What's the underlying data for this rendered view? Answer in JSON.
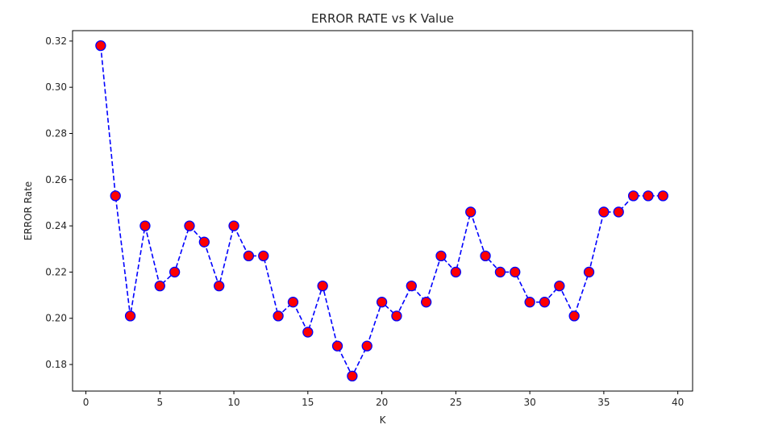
{
  "chart_data": {
    "type": "line",
    "title": "ERROR RATE vs K Value",
    "xlabel": "K",
    "ylabel": "ERROR Rate",
    "xlim": [
      -0.9,
      41.0
    ],
    "ylim": [
      0.1685,
      0.3245
    ],
    "xticks": [
      0,
      5,
      10,
      15,
      20,
      25,
      30,
      35,
      40
    ],
    "xtick_labels": [
      "0",
      "5",
      "10",
      "15",
      "20",
      "25",
      "30",
      "35",
      "40"
    ],
    "yticks": [
      0.18,
      0.2,
      0.22,
      0.24,
      0.26,
      0.28,
      0.3,
      0.32
    ],
    "ytick_labels": [
      "0.18",
      "0.20",
      "0.22",
      "0.24",
      "0.26",
      "0.28",
      "0.30",
      "0.32"
    ],
    "grid": false,
    "line_style": "dashed",
    "line_color": "#0000ff",
    "marker": "circle",
    "marker_face_color": "#ff0000",
    "marker_edge_color": "#0000ff",
    "series": [
      {
        "x": [
          1,
          2,
          3,
          4,
          5,
          6,
          7,
          8,
          9,
          10,
          11,
          12,
          13,
          14,
          15,
          16,
          17,
          18,
          19,
          20,
          21,
          22,
          23,
          24,
          25,
          26,
          27,
          28,
          29,
          30,
          31,
          32,
          33,
          34,
          35,
          36,
          37,
          38,
          39
        ],
        "values": [
          0.318,
          0.253,
          0.201,
          0.24,
          0.214,
          0.22,
          0.24,
          0.233,
          0.214,
          0.24,
          0.227,
          0.227,
          0.201,
          0.207,
          0.194,
          0.214,
          0.188,
          0.175,
          0.188,
          0.207,
          0.201,
          0.214,
          0.207,
          0.227,
          0.22,
          0.246,
          0.227,
          0.22,
          0.22,
          0.207,
          0.207,
          0.214,
          0.201,
          0.22,
          0.246,
          0.246,
          0.253,
          0.253,
          0.253
        ]
      }
    ]
  }
}
